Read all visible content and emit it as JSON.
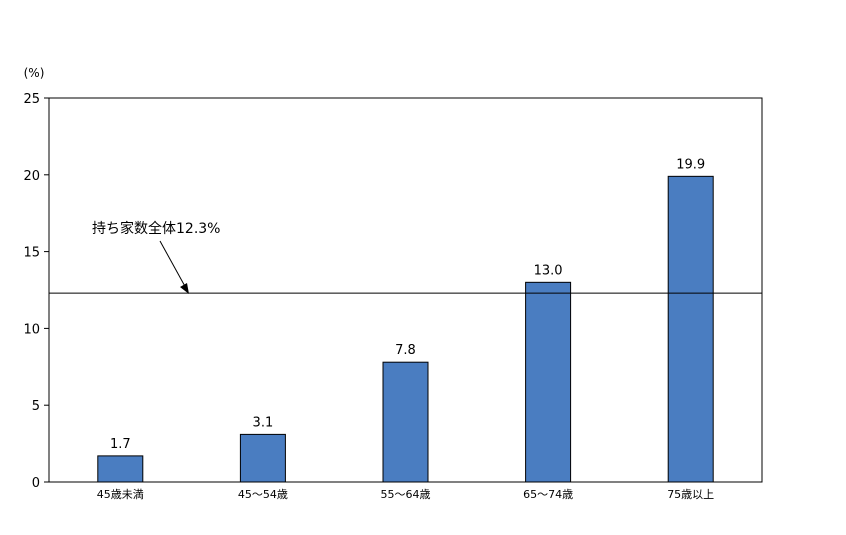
{
  "chart_data": {
    "type": "bar",
    "title": "",
    "xlabel": "",
    "ylabel": "(%)",
    "ylim": [
      0,
      25
    ],
    "yticks": [
      0,
      5,
      10,
      15,
      20,
      25
    ],
    "grid": false,
    "legend": "none",
    "categories": [
      "45歳未満",
      "45～54歳",
      "55～64歳",
      "65～74歳",
      "75歳以上"
    ],
    "values": [
      1.7,
      3.1,
      7.8,
      13.0,
      19.9
    ],
    "data_labels": [
      "1.7",
      "3.1",
      "7.8",
      "13.0",
      "19.9"
    ],
    "reference_line": {
      "value": 12.3,
      "label": "持ち家数全体12.3%"
    },
    "colors": {
      "bar": "#4a7dc1",
      "bar_edge": "#000000",
      "axis": "#000000"
    }
  }
}
